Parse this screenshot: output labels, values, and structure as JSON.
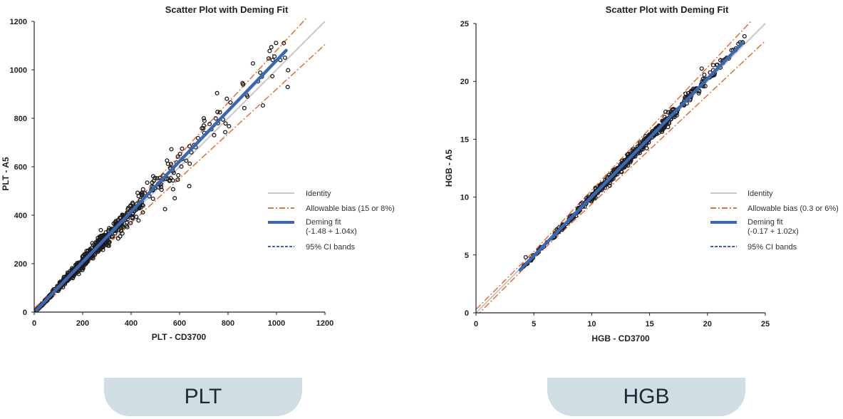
{
  "colors": {
    "identity": "#c8c8c8",
    "bias": "#e8743b",
    "deming": "#3a68b4",
    "ci": "#3a68b4",
    "points": "#1c1c1c",
    "tab_bg": "#cfdde4"
  },
  "tabs": {
    "left_label": "PLT",
    "right_label": "HGB"
  },
  "chart_data": [
    {
      "type": "scatter",
      "title": "Scatter Plot with Deming Fit",
      "xlabel": "PLT - CD3700",
      "ylabel": "PLT - A5",
      "xlim": [
        0,
        1200
      ],
      "ylim": [
        0,
        1200
      ],
      "x_ticks": [
        "0",
        "200",
        "400",
        "600",
        "800",
        "1000",
        "1200"
      ],
      "y_ticks": [
        "0",
        "200",
        "400",
        "600",
        "800",
        "1000",
        "1200"
      ],
      "identity": {
        "intercept": 0,
        "slope": 1,
        "x_range": [
          0,
          1200
        ]
      },
      "bias_bands": {
        "absolute": 15,
        "percent": 8,
        "x_range": [
          0,
          1200
        ]
      },
      "deming_fit": {
        "intercept": -1.48,
        "slope": 1.04,
        "x_range": [
          10,
          1040
        ]
      },
      "ci_bands": {
        "x_range": [
          10,
          1040
        ]
      },
      "points": {
        "n": 650,
        "x_distribution": [
          [
            0,
            100,
            0.14
          ],
          [
            100,
            300,
            0.52
          ],
          [
            300,
            450,
            0.2
          ],
          [
            450,
            600,
            0.07
          ],
          [
            600,
            800,
            0.04
          ],
          [
            800,
            1050,
            0.03
          ]
        ],
        "relative_spread": 0.07,
        "seed": 11
      },
      "extra_points": [
        [
          540,
          425
        ],
        [
          700,
          800
        ],
        [
          860,
          945
        ],
        [
          1030,
          1110
        ],
        [
          1035,
          1050
        ],
        [
          580,
          470
        ],
        [
          640,
          520
        ],
        [
          660,
          690
        ],
        [
          700,
          770
        ],
        [
          880,
          890
        ]
      ],
      "legend": {
        "identity": "Identity",
        "bias": "Allowable bias (15 or 8%)",
        "deming": "Deming fit",
        "deming_eq": "(-1.48 + 1.04x)",
        "ci": "95% CI bands"
      },
      "legend_placement": "center-right"
    },
    {
      "type": "scatter",
      "title": "Scatter Plot with Deming Fit",
      "xlabel": "HGB - CD3700",
      "ylabel": "HGB - A5",
      "xlim": [
        0,
        25
      ],
      "ylim": [
        0,
        25
      ],
      "x_ticks": [
        "0",
        "5",
        "10",
        "15",
        "20",
        "25"
      ],
      "y_ticks": [
        "0",
        "5",
        "10",
        "15",
        "20",
        "25"
      ],
      "identity": {
        "intercept": 0,
        "slope": 1,
        "x_range": [
          0,
          25
        ]
      },
      "bias_bands": {
        "absolute": 0.3,
        "percent": 6,
        "x_range": [
          0,
          25
        ]
      },
      "deming_fit": {
        "intercept": -0.17,
        "slope": 1.02,
        "x_range": [
          3.8,
          23
        ]
      },
      "ci_bands": {
        "x_range": [
          3.8,
          23
        ]
      },
      "points": {
        "n": 600,
        "x_distribution": [
          [
            4,
            7,
            0.06
          ],
          [
            7,
            10,
            0.14
          ],
          [
            10,
            14,
            0.42
          ],
          [
            14,
            17,
            0.24
          ],
          [
            17,
            20,
            0.1
          ],
          [
            20,
            23.2,
            0.04
          ]
        ],
        "relative_spread": 0.015,
        "seed": 23
      },
      "extra_points": [
        [
          23.2,
          23.9
        ],
        [
          19.5,
          21.1
        ],
        [
          21.5,
          21.9
        ],
        [
          20.5,
          21.4
        ],
        [
          4.3,
          4.8
        ],
        [
          22.4,
          22.7
        ]
      ],
      "legend": {
        "identity": "Identity",
        "bias": "Allowable bias (0.3 or 6%)",
        "deming": "Deming fit",
        "deming_eq": "(-0.17 + 1.02x)",
        "ci": "95% CI bands"
      },
      "legend_placement": "center-right"
    }
  ]
}
